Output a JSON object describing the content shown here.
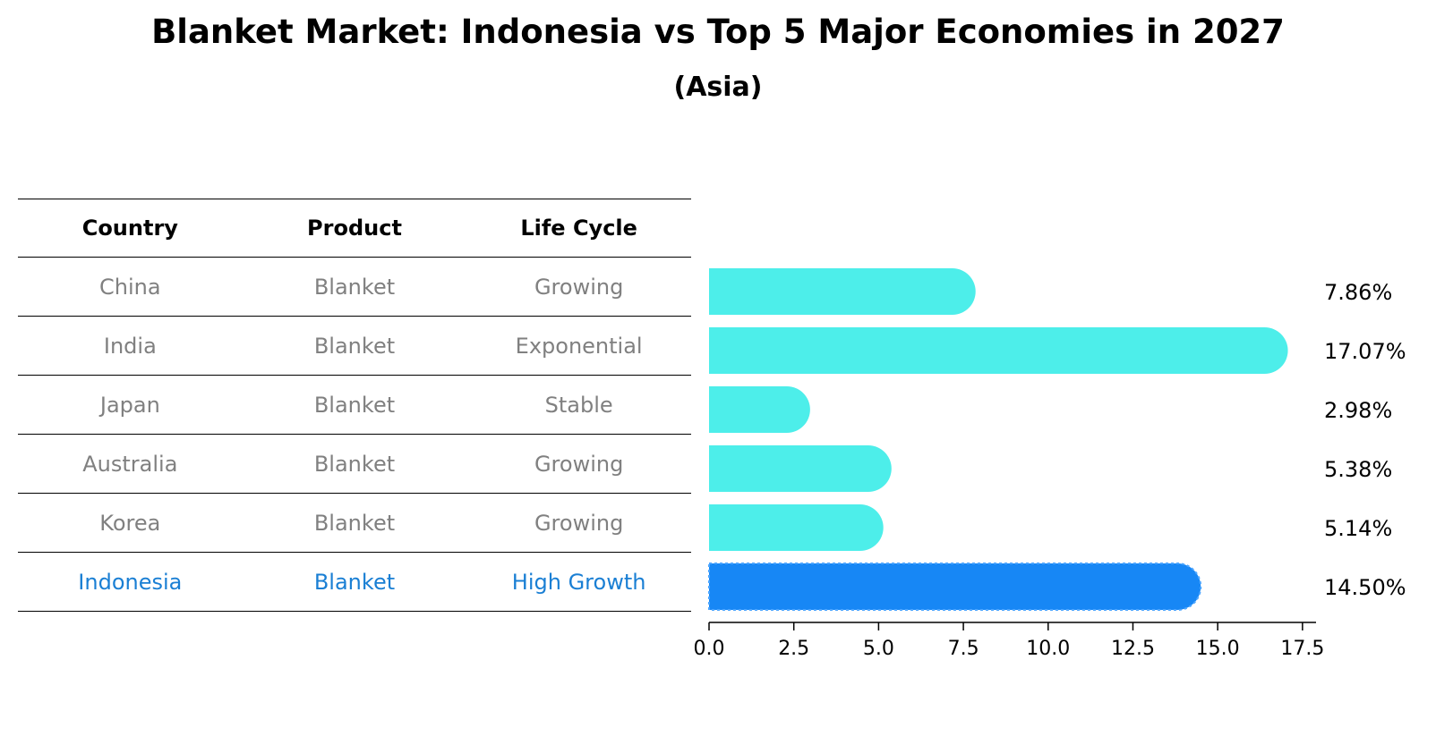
{
  "title": "Blanket Market: Indonesia vs Top 5 Major Economies in 2027",
  "subtitle": "(Asia)",
  "table": {
    "headers": [
      "Country",
      "Product",
      "Life Cycle"
    ],
    "rows": [
      {
        "country": "China",
        "product": "Blanket",
        "life_cycle": "Growing"
      },
      {
        "country": "India",
        "product": "Blanket",
        "life_cycle": "Exponential"
      },
      {
        "country": "Japan",
        "product": "Blanket",
        "life_cycle": "Stable"
      },
      {
        "country": "Australia",
        "product": "Blanket",
        "life_cycle": "Growing"
      },
      {
        "country": "Korea",
        "product": "Blanket",
        "life_cycle": "Growing"
      },
      {
        "country": "Indonesia",
        "product": "Blanket",
        "life_cycle": "High Growth"
      }
    ]
  },
  "chart_data": {
    "type": "bar",
    "orientation": "horizontal",
    "categories": [
      "China",
      "India",
      "Japan",
      "Australia",
      "Korea",
      "Indonesia"
    ],
    "values": [
      7.86,
      17.07,
      2.98,
      5.38,
      5.14,
      14.5
    ],
    "value_labels": [
      "7.86%",
      "17.07%",
      "2.98%",
      "5.38%",
      "5.14%",
      "14.50%"
    ],
    "xlim": [
      0,
      17.9
    ],
    "xticks": [
      0.0,
      2.5,
      5.0,
      7.5,
      10.0,
      12.5,
      15.0,
      17.5
    ],
    "xtick_labels": [
      "0.0",
      "2.5",
      "5.0",
      "7.5",
      "10.0",
      "12.5",
      "15.0",
      "17.5"
    ],
    "highlight_category": "Indonesia",
    "colors": {
      "default": "#4deeea",
      "highlight": "#1787f5"
    },
    "grid": false
  }
}
